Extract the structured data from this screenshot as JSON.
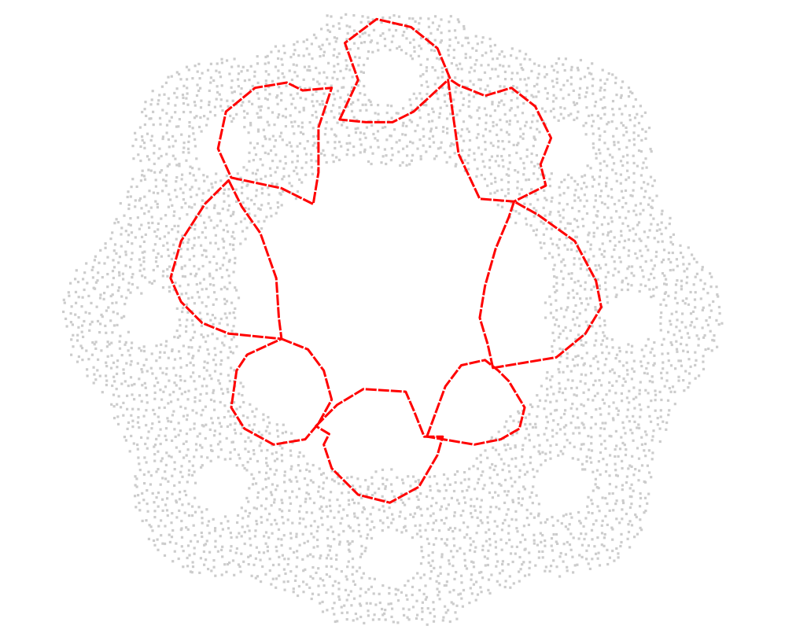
{
  "colors": {
    "background": "#ffffff",
    "point_cloud": "#cccccc",
    "path": "#ff0000"
  },
  "chart_data": {
    "type": "scatter",
    "title": "",
    "xlabel": "",
    "ylabel": "",
    "axes_visible": false,
    "grid": false,
    "xlim": [
      -1.45,
      1.45
    ],
    "ylim": [
      -1.15,
      1.15
    ],
    "point_cloud": {
      "description_shape": "eight-lobed ring; each lobe is an annulus around a hole",
      "lobe_count": 8,
      "ring_radius": 0.91,
      "lobe_outer_radius": 0.34,
      "lobe_hole_radius": 0.1,
      "center_clear_radius": 0.5,
      "grid_step": 0.026
    },
    "series": [
      {
        "type": "line",
        "closed": true,
        "points": [
          [
            -0.2,
            0.75
          ],
          [
            -0.13,
            0.9
          ],
          [
            -0.18,
            1.04
          ],
          [
            -0.06,
            1.13
          ],
          [
            0.07,
            1.1
          ],
          [
            0.17,
            1.02
          ],
          [
            0.22,
            0.9
          ],
          [
            0.25,
            0.88
          ],
          [
            0.35,
            0.84
          ],
          [
            0.45,
            0.87
          ],
          [
            0.54,
            0.8
          ],
          [
            0.6,
            0.68
          ],
          [
            0.56,
            0.58
          ],
          [
            0.58,
            0.5
          ],
          [
            0.46,
            0.44
          ],
          [
            0.33,
            0.45
          ],
          [
            0.25,
            0.62
          ],
          [
            0.21,
            0.9
          ],
          [
            0.08,
            0.78
          ],
          [
            0.0,
            0.74
          ],
          [
            -0.1,
            0.74
          ],
          [
            -0.2,
            0.75
          ]
        ]
      },
      {
        "type": "line",
        "closed": true,
        "points": [
          [
            -0.61,
            0.53
          ],
          [
            -0.42,
            0.49
          ],
          [
            -0.3,
            0.43
          ],
          [
            -0.28,
            0.55
          ],
          [
            -0.28,
            0.72
          ],
          [
            -0.23,
            0.87
          ],
          [
            -0.34,
            0.86
          ],
          [
            -0.4,
            0.89
          ],
          [
            -0.52,
            0.87
          ],
          [
            -0.63,
            0.78
          ],
          [
            -0.66,
            0.64
          ],
          [
            -0.61,
            0.53
          ]
        ]
      },
      {
        "type": "line",
        "closed": true,
        "points": [
          [
            -0.62,
            0.52
          ],
          [
            -0.57,
            0.42
          ],
          [
            -0.5,
            0.32
          ],
          [
            -0.44,
            0.15
          ],
          [
            -0.43,
            0.0
          ],
          [
            -0.42,
            -0.08
          ],
          [
            -0.62,
            -0.06
          ],
          [
            -0.72,
            -0.02
          ],
          [
            -0.8,
            0.06
          ],
          [
            -0.84,
            0.15
          ],
          [
            -0.8,
            0.29
          ],
          [
            -0.71,
            0.43
          ],
          [
            -0.62,
            0.52
          ]
        ]
      },
      {
        "type": "line",
        "closed": true,
        "points": [
          [
            -0.42,
            -0.08
          ],
          [
            -0.32,
            -0.12
          ],
          [
            -0.26,
            -0.2
          ],
          [
            -0.23,
            -0.31
          ],
          [
            -0.28,
            -0.4
          ],
          [
            -0.33,
            -0.46
          ],
          [
            -0.45,
            -0.48
          ],
          [
            -0.56,
            -0.42
          ],
          [
            -0.61,
            -0.34
          ],
          [
            -0.59,
            -0.2
          ],
          [
            -0.55,
            -0.14
          ],
          [
            -0.42,
            -0.08
          ]
        ]
      },
      {
        "type": "line",
        "closed": true,
        "points": [
          [
            -0.29,
            -0.41
          ],
          [
            -0.21,
            -0.33
          ],
          [
            -0.11,
            -0.27
          ],
          [
            0.05,
            -0.28
          ],
          [
            0.08,
            -0.35
          ],
          [
            0.12,
            -0.45
          ],
          [
            0.19,
            -0.45
          ],
          [
            0.17,
            -0.52
          ],
          [
            0.1,
            -0.64
          ],
          [
            -0.01,
            -0.7
          ],
          [
            -0.13,
            -0.67
          ],
          [
            -0.23,
            -0.57
          ],
          [
            -0.26,
            -0.48
          ],
          [
            -0.24,
            -0.44
          ],
          [
            -0.29,
            -0.41
          ]
        ]
      },
      {
        "type": "line",
        "closed": true,
        "points": [
          [
            0.13,
            -0.45
          ],
          [
            0.2,
            -0.26
          ],
          [
            0.26,
            -0.18
          ],
          [
            0.35,
            -0.16
          ],
          [
            0.4,
            -0.2
          ],
          [
            0.44,
            -0.24
          ],
          [
            0.5,
            -0.34
          ],
          [
            0.48,
            -0.42
          ],
          [
            0.41,
            -0.46
          ],
          [
            0.31,
            -0.48
          ],
          [
            0.13,
            -0.45
          ]
        ]
      },
      {
        "type": "line",
        "closed": true,
        "points": [
          [
            0.38,
            -0.19
          ],
          [
            0.5,
            -0.17
          ],
          [
            0.62,
            -0.15
          ],
          [
            0.73,
            -0.06
          ],
          [
            0.79,
            0.04
          ],
          [
            0.77,
            0.14
          ],
          [
            0.69,
            0.29
          ],
          [
            0.55,
            0.39
          ],
          [
            0.46,
            0.44
          ],
          [
            0.44,
            0.38
          ],
          [
            0.39,
            0.26
          ],
          [
            0.35,
            0.12
          ],
          [
            0.33,
            0.0
          ],
          [
            0.36,
            -0.1
          ],
          [
            0.38,
            -0.19
          ]
        ]
      }
    ]
  }
}
